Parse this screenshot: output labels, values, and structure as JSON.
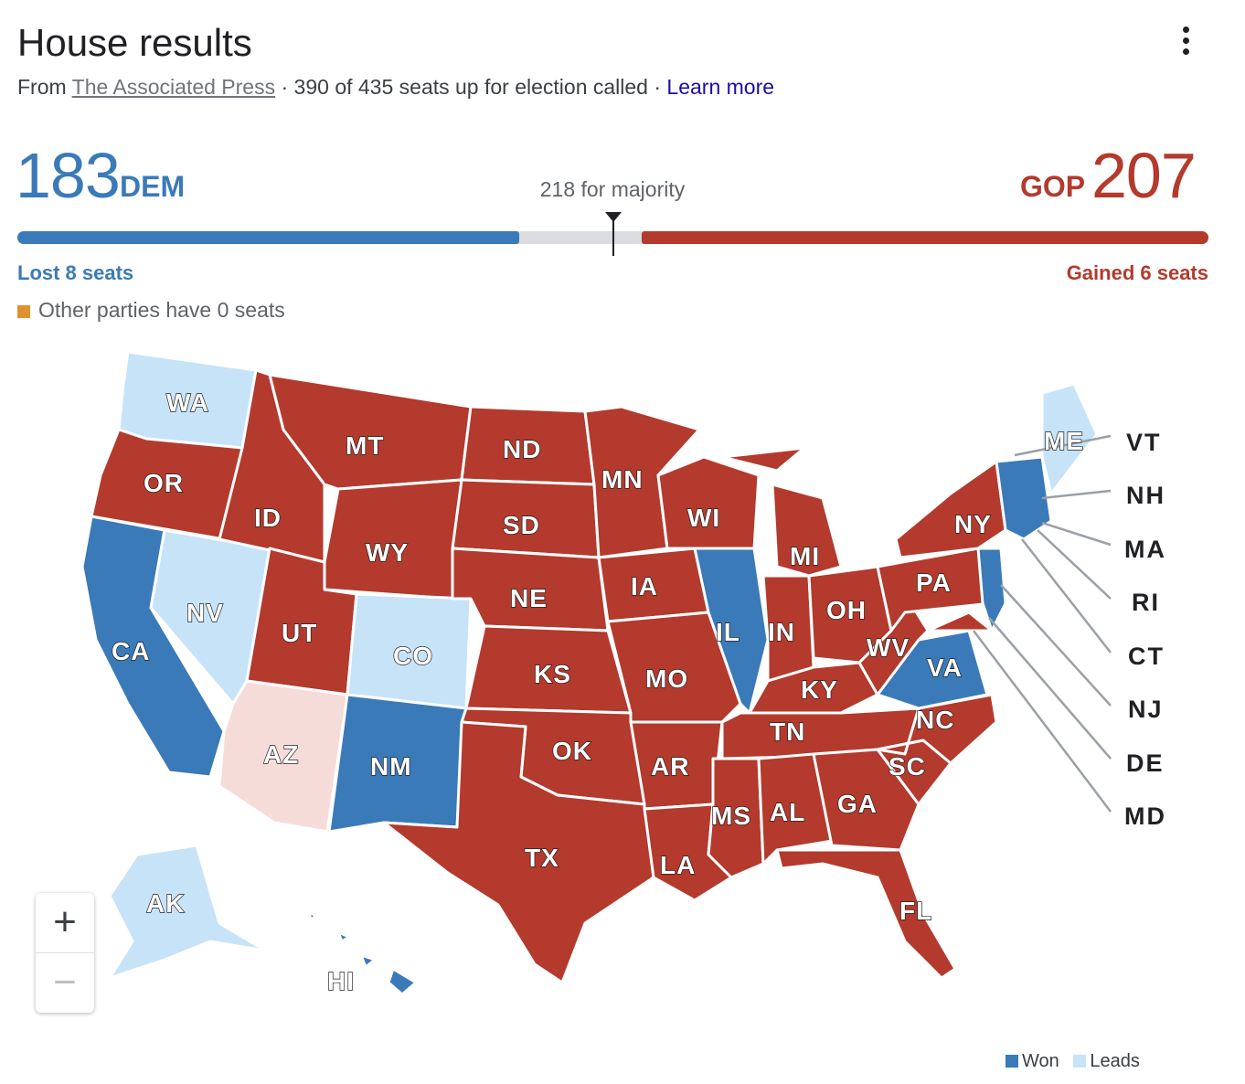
{
  "header": {
    "title": "House results",
    "source_prefix": "From",
    "source_name": "The Associated Press",
    "called_text": "· 390 of 435 seats up for election called ·",
    "learn_more": "Learn more"
  },
  "tally": {
    "dem_seats": "183",
    "dem_label": "DEM",
    "gop_seats": "207",
    "gop_label": "GOP",
    "majority_text": "218 for majority",
    "dem_change": "Lost 8 seats",
    "gop_change": "Gained 6 seats",
    "other_text": "Other parties have 0 seats",
    "total_seats": 435,
    "majority": 218
  },
  "colors": {
    "dem": "#3a7ab8",
    "gop": "#b33a2d",
    "dem_lean": "#c7e3f8",
    "gop_lean": "#f6dcd9",
    "other": "#e0902f",
    "uncalled": "#dadce0"
  },
  "map": {
    "states": [
      {
        "abbr": "WA",
        "party": "dem_lean"
      },
      {
        "abbr": "OR",
        "party": "gop"
      },
      {
        "abbr": "CA",
        "party": "dem"
      },
      {
        "abbr": "NV",
        "party": "dem_lean"
      },
      {
        "abbr": "ID",
        "party": "gop"
      },
      {
        "abbr": "MT",
        "party": "gop"
      },
      {
        "abbr": "WY",
        "party": "gop"
      },
      {
        "abbr": "UT",
        "party": "gop"
      },
      {
        "abbr": "AZ",
        "party": "gop_lean"
      },
      {
        "abbr": "CO",
        "party": "dem_lean"
      },
      {
        "abbr": "NM",
        "party": "dem"
      },
      {
        "abbr": "ND",
        "party": "gop"
      },
      {
        "abbr": "SD",
        "party": "gop"
      },
      {
        "abbr": "NE",
        "party": "gop"
      },
      {
        "abbr": "KS",
        "party": "gop"
      },
      {
        "abbr": "OK",
        "party": "gop"
      },
      {
        "abbr": "TX",
        "party": "gop"
      },
      {
        "abbr": "MN",
        "party": "gop"
      },
      {
        "abbr": "IA",
        "party": "gop"
      },
      {
        "abbr": "MO",
        "party": "gop"
      },
      {
        "abbr": "AR",
        "party": "gop"
      },
      {
        "abbr": "LA",
        "party": "gop"
      },
      {
        "abbr": "WI",
        "party": "gop"
      },
      {
        "abbr": "IL",
        "party": "dem"
      },
      {
        "abbr": "MI",
        "party": "gop"
      },
      {
        "abbr": "IN",
        "party": "gop"
      },
      {
        "abbr": "OH",
        "party": "gop"
      },
      {
        "abbr": "KY",
        "party": "gop"
      },
      {
        "abbr": "TN",
        "party": "gop"
      },
      {
        "abbr": "MS",
        "party": "gop"
      },
      {
        "abbr": "AL",
        "party": "gop"
      },
      {
        "abbr": "GA",
        "party": "gop"
      },
      {
        "abbr": "FL",
        "party": "gop"
      },
      {
        "abbr": "SC",
        "party": "gop"
      },
      {
        "abbr": "NC",
        "party": "gop"
      },
      {
        "abbr": "VA",
        "party": "dem"
      },
      {
        "abbr": "WV",
        "party": "gop"
      },
      {
        "abbr": "PA",
        "party": "gop"
      },
      {
        "abbr": "NY",
        "party": "gop"
      },
      {
        "abbr": "ME",
        "party": "dem_lean"
      },
      {
        "abbr": "AK",
        "party": "dem_lean"
      },
      {
        "abbr": "HI",
        "party": "dem"
      }
    ],
    "side_labels": [
      "VT",
      "NH",
      "MA",
      "RI",
      "CT",
      "NJ",
      "DE",
      "MD"
    ]
  },
  "zoom": {
    "in": "+",
    "out": "−"
  },
  "legend": {
    "won": "Won",
    "leads": "Leads"
  }
}
